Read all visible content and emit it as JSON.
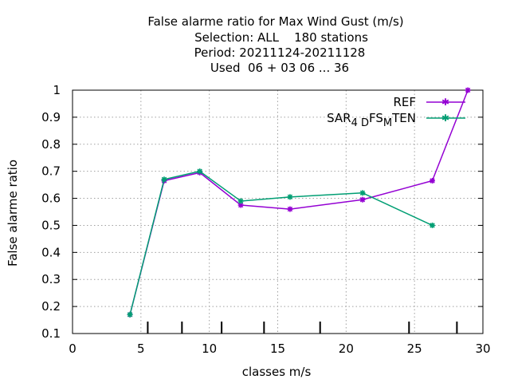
{
  "chart_data": {
    "type": "line",
    "title_lines": [
      "False alarme ratio  for Max Wind Gust (m/s)",
      "Selection: ALL    180 stations",
      "Period: 20211124-20211128",
      "Used  06 + 03 06 ... 36"
    ],
    "xlabel": "classes m/s",
    "ylabel": "False alarme ratio",
    "xlim": [
      0,
      30
    ],
    "ylim": [
      0.1,
      1.0
    ],
    "xticks": [
      0,
      5,
      10,
      15,
      20,
      25,
      30
    ],
    "yticks": [
      0.1,
      0.2,
      0.3,
      0.4,
      0.5,
      0.6,
      0.7,
      0.8,
      0.9,
      1.0
    ],
    "class_markers": [
      5.5,
      8.0,
      10.9,
      14.0,
      18.1,
      24.6,
      28.1
    ],
    "grid": true,
    "legend_position": "top-right",
    "series": [
      {
        "name": "REF",
        "color": "#9400d3",
        "x": [
          4.2,
          6.7,
          9.3,
          12.3,
          15.9,
          21.2,
          26.3,
          28.9
        ],
        "y": [
          0.17,
          0.665,
          0.695,
          0.575,
          0.56,
          0.595,
          0.665,
          1.0
        ]
      },
      {
        "name": "SAR_4D FS_M TEN",
        "label_parts": [
          "SAR",
          "4 D",
          "FS",
          "M",
          "TEN"
        ],
        "color": "#009e73",
        "x": [
          4.2,
          6.7,
          9.3,
          12.3,
          15.9,
          21.2,
          26.3
        ],
        "y": [
          0.17,
          0.67,
          0.7,
          0.59,
          0.605,
          0.62,
          0.5
        ]
      }
    ]
  }
}
